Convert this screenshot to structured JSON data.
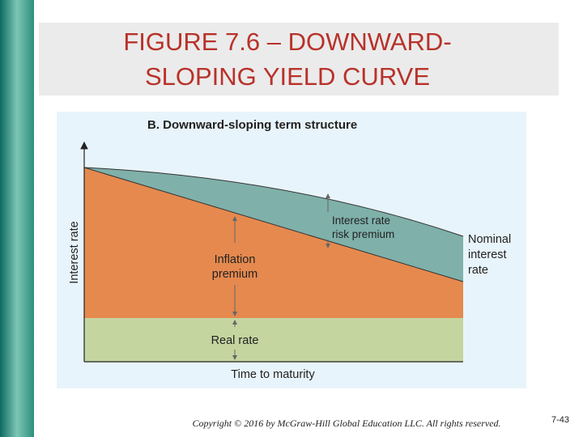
{
  "header": {
    "title_lines": [
      "FIGURE 7.6 – DOWNWARD-",
      "SLOPING YIELD CURVE"
    ]
  },
  "figure": {
    "heading": "B. Downward-sloping term structure",
    "y_axis_label": "Interest rate",
    "x_axis_label": "Time to maturity",
    "risk_premium_lines": [
      "Interest rate",
      "risk premium"
    ],
    "inflation_premium_lines": [
      "Inflation",
      "premium"
    ],
    "nominal_rate_lines": [
      "Nominal",
      "interest",
      "rate"
    ],
    "real_rate": "Real rate"
  },
  "footer": {
    "copyright": "Copyright © 2016 by McGraw-Hill Global Education LLC. All rights reserved.",
    "page_number": "7-43"
  }
}
